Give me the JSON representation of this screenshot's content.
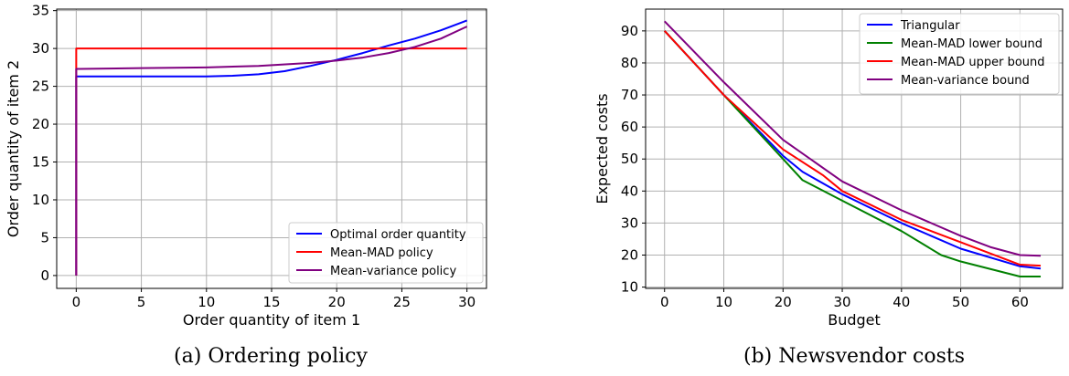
{
  "chart_data": [
    {
      "type": "line",
      "caption": "(a) Ordering policy",
      "xlabel": "Order quantity of item 1",
      "ylabel": "Order quantity of item 2",
      "xlim": [
        -1.5,
        31.5
      ],
      "ylim": [
        -1.7,
        35.2
      ],
      "xticks": [
        0,
        5,
        10,
        15,
        20,
        25,
        30
      ],
      "yticks": [
        0,
        5,
        10,
        15,
        20,
        25,
        30,
        35
      ],
      "grid": true,
      "legend_position": "lower-right",
      "series": [
        {
          "name": "Optimal order quantity",
          "color": "#0000ff",
          "x": [
            0,
            0,
            0.3,
            10,
            12,
            14,
            16,
            18,
            20,
            22,
            24,
            26,
            28,
            30
          ],
          "y": [
            0,
            26.3,
            26.3,
            26.3,
            26.4,
            26.6,
            27.0,
            27.7,
            28.5,
            29.4,
            30.4,
            31.3,
            32.4,
            33.7
          ]
        },
        {
          "name": "Mean-MAD policy",
          "color": "#ff0000",
          "x": [
            0,
            0,
            0.3,
            30
          ],
          "y": [
            0,
            30,
            30,
            30
          ]
        },
        {
          "name": "Mean-variance policy",
          "color": "#800080",
          "x": [
            0,
            0,
            0.3,
            5,
            10,
            14,
            18,
            20,
            22,
            24,
            26,
            28,
            30
          ],
          "y": [
            0,
            27.3,
            27.3,
            27.4,
            27.5,
            27.7,
            28.1,
            28.4,
            28.8,
            29.4,
            30.2,
            31.3,
            32.9
          ]
        }
      ]
    },
    {
      "type": "line",
      "caption": "(b) Newsvendor costs",
      "xlabel": "Budget",
      "ylabel": "Expected costs",
      "xlim": [
        -3.2,
        67.2
      ],
      "ylim": [
        9.6,
        96.8
      ],
      "xticks": [
        0,
        10,
        20,
        30,
        40,
        50,
        60
      ],
      "yticks": [
        10,
        20,
        30,
        40,
        50,
        60,
        70,
        80,
        90
      ],
      "grid": true,
      "legend_position": "top-right",
      "series": [
        {
          "name": "Triangular",
          "color": "#0000ff",
          "x": [
            0,
            10,
            20,
            23.3,
            30,
            40,
            50,
            60,
            63.5
          ],
          "y": [
            90,
            70,
            51,
            46,
            39,
            30,
            22,
            16.5,
            15.8
          ]
        },
        {
          "name": "Mean-MAD lower bound",
          "color": "#008000",
          "x": [
            0,
            10,
            20,
            23.3,
            30,
            40,
            46.7,
            50,
            60,
            63.5
          ],
          "y": [
            90,
            70,
            50,
            43.4,
            37,
            27.5,
            20,
            18,
            13.3,
            13.3
          ]
        },
        {
          "name": "Mean-MAD upper bound",
          "color": "#ff0000",
          "x": [
            0,
            10,
            20,
            26.7,
            30,
            40,
            50,
            60,
            63.5
          ],
          "y": [
            90,
            70,
            53,
            45,
            40,
            31,
            24,
            17,
            16.7
          ]
        },
        {
          "name": "Mean-variance bound",
          "color": "#800080",
          "x": [
            0,
            10,
            20,
            30,
            40,
            50,
            55,
            60,
            63.5
          ],
          "y": [
            93,
            74,
            56,
            43,
            34,
            26,
            22.5,
            20,
            19.8
          ]
        }
      ]
    }
  ]
}
